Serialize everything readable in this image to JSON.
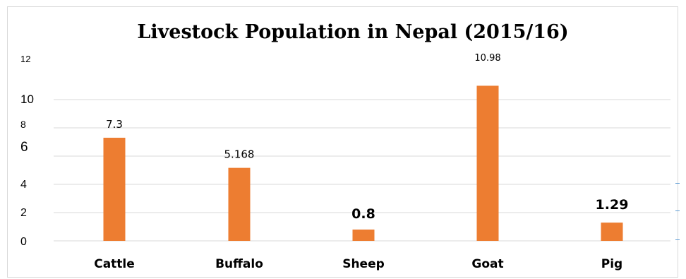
{
  "chart_data": {
    "type": "bar",
    "title": "Livestock Population in Nepal (2015/16)",
    "categories": [
      "Cattle",
      "Buffalo",
      "Sheep",
      "Goat",
      "Pig"
    ],
    "values": [
      7.3,
      5.168,
      0.8,
      10.98,
      1.29
    ],
    "data_labels": [
      "7.3",
      "5.168",
      "0.8",
      "10.98",
      "1.29"
    ],
    "yticks": [
      0,
      2,
      4,
      6,
      8,
      10,
      12
    ],
    "ylim": [
      0,
      12
    ],
    "xlabel": "",
    "ylabel": "",
    "bar_color": "#ed7d31",
    "grid": true,
    "legend": "none"
  }
}
